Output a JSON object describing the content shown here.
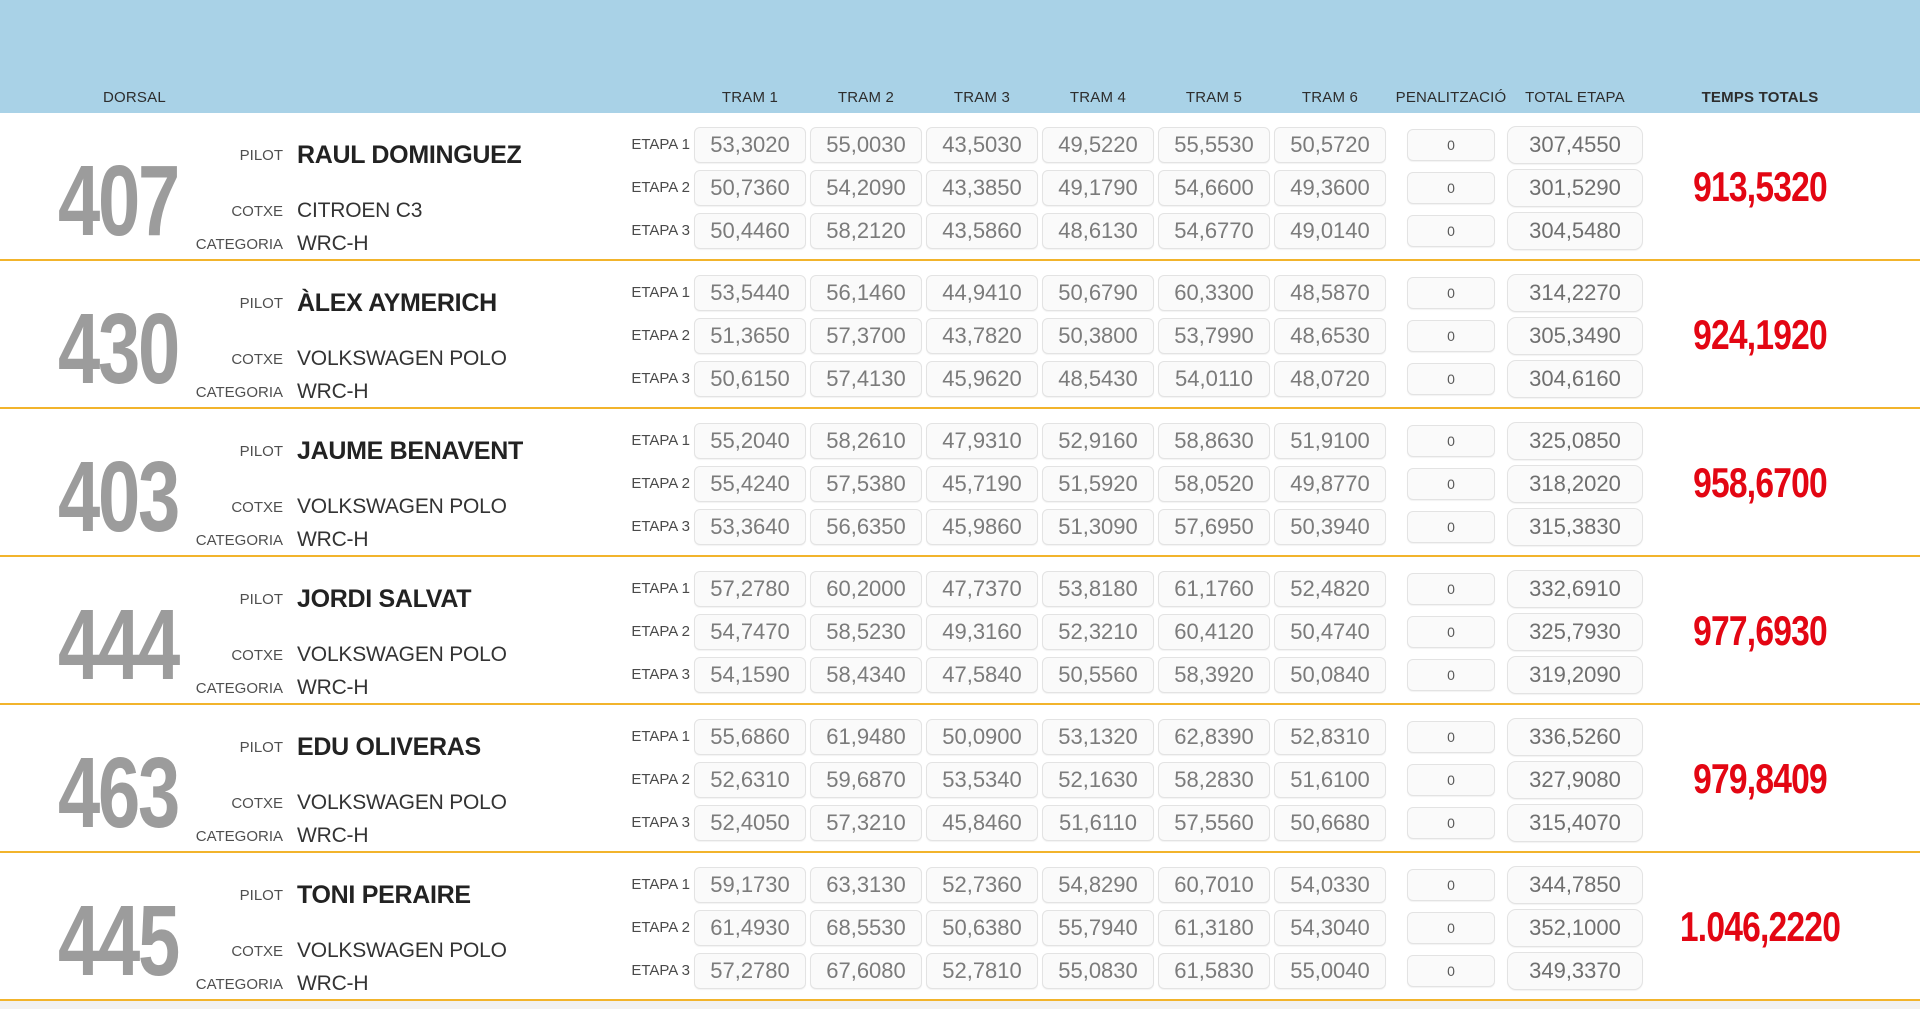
{
  "colors": {
    "header_bg": "#a9d2e7",
    "separator": "#f2b42c",
    "total_red": "#e30613",
    "dorsal_gray": "#9c9c9c"
  },
  "header": {
    "dorsal_label": "DORSAL",
    "tram_labels": [
      "TRAM 1",
      "TRAM 2",
      "TRAM 3",
      "TRAM 4",
      "TRAM 5",
      "TRAM 6"
    ],
    "penalty_label": "PENALITZACIÓ",
    "total_etapa_label": "TOTAL ETAPA",
    "temps_totals_label": "TEMPS TOTALS"
  },
  "row_labels": {
    "pilot": "PILOT",
    "cotxe": "COTXE",
    "categoria": "CATEGORIA",
    "etapes": [
      "ETAPA 1",
      "ETAPA 2",
      "ETAPA 3"
    ]
  },
  "drivers": [
    {
      "dorsal": "407",
      "pilot": "RAUL DOMINGUEZ",
      "cotxe": "CITROEN C3",
      "categoria": "WRC-H",
      "etapes": [
        {
          "trams": [
            "53,3020",
            "55,0030",
            "43,5030",
            "49,5220",
            "55,5530",
            "50,5720"
          ],
          "penalitzacio": "0",
          "total_etapa": "307,4550"
        },
        {
          "trams": [
            "50,7360",
            "54,2090",
            "43,3850",
            "49,1790",
            "54,6600",
            "49,3600"
          ],
          "penalitzacio": "0",
          "total_etapa": "301,5290"
        },
        {
          "trams": [
            "50,4460",
            "58,2120",
            "43,5860",
            "48,6130",
            "54,6770",
            "49,0140"
          ],
          "penalitzacio": "0",
          "total_etapa": "304,5480"
        }
      ],
      "temps_total": "913,5320"
    },
    {
      "dorsal": "430",
      "pilot": "ÀLEX AYMERICH",
      "cotxe": "VOLKSWAGEN POLO",
      "categoria": "WRC-H",
      "etapes": [
        {
          "trams": [
            "53,5440",
            "56,1460",
            "44,9410",
            "50,6790",
            "60,3300",
            "48,5870"
          ],
          "penalitzacio": "0",
          "total_etapa": "314,2270"
        },
        {
          "trams": [
            "51,3650",
            "57,3700",
            "43,7820",
            "50,3800",
            "53,7990",
            "48,6530"
          ],
          "penalitzacio": "0",
          "total_etapa": "305,3490"
        },
        {
          "trams": [
            "50,6150",
            "57,4130",
            "45,9620",
            "48,5430",
            "54,0110",
            "48,0720"
          ],
          "penalitzacio": "0",
          "total_etapa": "304,6160"
        }
      ],
      "temps_total": "924,1920"
    },
    {
      "dorsal": "403",
      "pilot": "JAUME BENAVENT",
      "cotxe": "VOLKSWAGEN POLO",
      "categoria": "WRC-H",
      "etapes": [
        {
          "trams": [
            "55,2040",
            "58,2610",
            "47,9310",
            "52,9160",
            "58,8630",
            "51,9100"
          ],
          "penalitzacio": "0",
          "total_etapa": "325,0850"
        },
        {
          "trams": [
            "55,4240",
            "57,5380",
            "45,7190",
            "51,5920",
            "58,0520",
            "49,8770"
          ],
          "penalitzacio": "0",
          "total_etapa": "318,2020"
        },
        {
          "trams": [
            "53,3640",
            "56,6350",
            "45,9860",
            "51,3090",
            "57,6950",
            "50,3940"
          ],
          "penalitzacio": "0",
          "total_etapa": "315,3830"
        }
      ],
      "temps_total": "958,6700"
    },
    {
      "dorsal": "444",
      "pilot": "JORDI SALVAT",
      "cotxe": "VOLKSWAGEN POLO",
      "categoria": "WRC-H",
      "etapes": [
        {
          "trams": [
            "57,2780",
            "60,2000",
            "47,7370",
            "53,8180",
            "61,1760",
            "52,4820"
          ],
          "penalitzacio": "0",
          "total_etapa": "332,6910"
        },
        {
          "trams": [
            "54,7470",
            "58,5230",
            "49,3160",
            "52,3210",
            "60,4120",
            "50,4740"
          ],
          "penalitzacio": "0",
          "total_etapa": "325,7930"
        },
        {
          "trams": [
            "54,1590",
            "58,4340",
            "47,5840",
            "50,5560",
            "58,3920",
            "50,0840"
          ],
          "penalitzacio": "0",
          "total_etapa": "319,2090"
        }
      ],
      "temps_total": "977,6930"
    },
    {
      "dorsal": "463",
      "pilot": "EDU OLIVERAS",
      "cotxe": "VOLKSWAGEN POLO",
      "categoria": "WRC-H",
      "etapes": [
        {
          "trams": [
            "55,6860",
            "61,9480",
            "50,0900",
            "53,1320",
            "62,8390",
            "52,8310"
          ],
          "penalitzacio": "0",
          "total_etapa": "336,5260"
        },
        {
          "trams": [
            "52,6310",
            "59,6870",
            "53,5340",
            "52,1630",
            "58,2830",
            "51,6100"
          ],
          "penalitzacio": "0",
          "total_etapa": "327,9080"
        },
        {
          "trams": [
            "52,4050",
            "57,3210",
            "45,8460",
            "51,6110",
            "57,5560",
            "50,6680"
          ],
          "penalitzacio": "0",
          "total_etapa": "315,4070"
        }
      ],
      "temps_total": "979,8409"
    },
    {
      "dorsal": "445",
      "pilot": "TONI PERAIRE",
      "cotxe": "VOLKSWAGEN POLO",
      "categoria": "WRC-H",
      "etapes": [
        {
          "trams": [
            "59,1730",
            "63,3130",
            "52,7360",
            "54,8290",
            "60,7010",
            "54,0330"
          ],
          "penalitzacio": "0",
          "total_etapa": "344,7850"
        },
        {
          "trams": [
            "61,4930",
            "68,5530",
            "50,6380",
            "55,7940",
            "61,3180",
            "54,3040"
          ],
          "penalitzacio": "0",
          "total_etapa": "352,1000"
        },
        {
          "trams": [
            "57,2780",
            "67,6080",
            "52,7810",
            "55,0830",
            "61,5830",
            "55,0040"
          ],
          "penalitzacio": "0",
          "total_etapa": "349,3370"
        }
      ],
      "temps_total": "1.046,2220"
    }
  ]
}
